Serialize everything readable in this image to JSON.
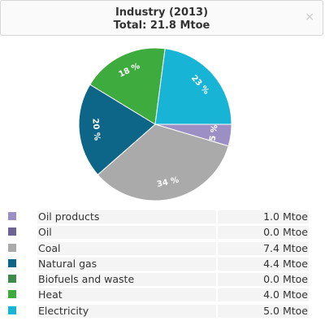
{
  "header": {
    "title": "Industry (2013)",
    "subtitle": "Total: 21.8 Mtoe",
    "close_icon": "×"
  },
  "chart_data": {
    "type": "pie",
    "title": "Industry (2013)",
    "subtitle": "Total: 21.8 Mtoe",
    "unit": "Mtoe",
    "categories": [
      "Oil products",
      "Oil",
      "Coal",
      "Natural gas",
      "Biofuels and waste",
      "Heat",
      "Electricity"
    ],
    "values": [
      1.0,
      0.0,
      7.4,
      4.4,
      0.0,
      4.0,
      5.0
    ],
    "value_labels": [
      "1.0 Mtoe",
      "0.0 Mtoe",
      "7.4 Mtoe",
      "4.4 Mtoe",
      "0.0 Mtoe",
      "4.0 Mtoe",
      "5.0 Mtoe"
    ],
    "slice_labels": [
      "5 %",
      "",
      "34 %",
      "20 %",
      "",
      "18 %",
      "23 %"
    ],
    "colors": [
      "#9b8fc4",
      "#6e6494",
      "#aaaaaa",
      "#0d6688",
      "#3d8b4a",
      "#3dab3d",
      "#17b4d6"
    ],
    "legend_position": "bottom"
  }
}
